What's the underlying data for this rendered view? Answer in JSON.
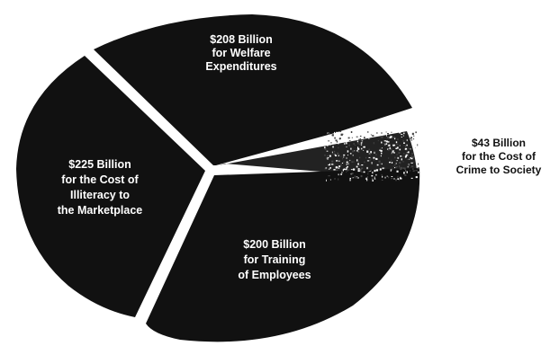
{
  "chart_data": {
    "type": "pie",
    "title": "",
    "exploded": true,
    "grid": false,
    "legend": "none",
    "slices": [
      {
        "label_lines": [
          "$208 Billion",
          "for Welfare",
          "Expenditures"
        ],
        "value": 208,
        "unit": "Billion",
        "color": "#111111"
      },
      {
        "label_lines": [
          "$43 Billion",
          "for the Cost of",
          "Crime to Society"
        ],
        "value": 43,
        "unit": "Billion",
        "color": "#222222"
      },
      {
        "label_lines": [
          "$200 Billion",
          "for Training",
          "of Employees"
        ],
        "value": 200,
        "unit": "Billion",
        "color": "#111111"
      },
      {
        "label_lines": [
          "$225 Billion",
          "for the Cost of",
          "Illiteracy to",
          "the Marketplace"
        ],
        "value": 225,
        "unit": "Billion",
        "color": "#111111"
      }
    ]
  }
}
